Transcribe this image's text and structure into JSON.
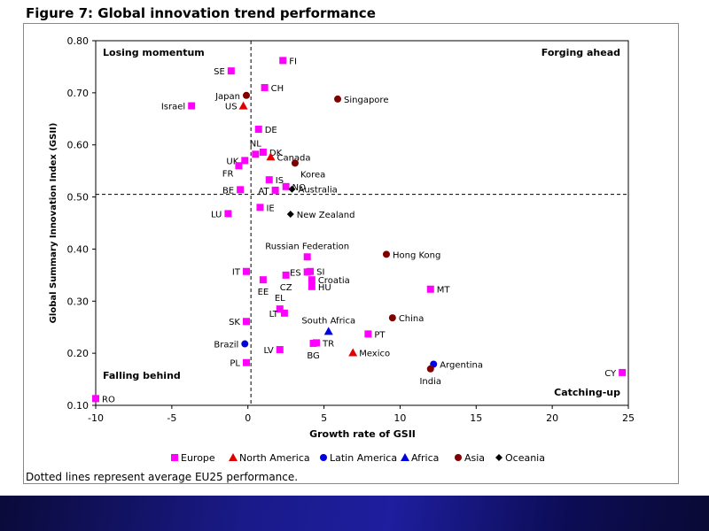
{
  "figure_title": "Figure 7: Global innovation trend performance",
  "footnote": "Dotted lines represent average EU25 performance.",
  "colors": {
    "Europe": "#ff00ff",
    "North America": "#e00000",
    "Latin America": "#0000e0",
    "Africa": "#0000e0",
    "Asia": "#800000",
    "Oceania": "#000000",
    "band": "#1a1a8a"
  },
  "chart_data": {
    "type": "scatter",
    "title": "Figure 7: Global innovation trend performance",
    "xlabel": "Growth rate of GSII",
    "ylabel": "Global Summary Innovation Index (GSII)",
    "xlim": [
      -10,
      25
    ],
    "ylim": [
      0.1,
      0.8
    ],
    "xticks": [
      -10,
      -5,
      0,
      5,
      10,
      15,
      20,
      25
    ],
    "yticks": [
      0.1,
      0.2,
      0.3,
      0.4,
      0.5,
      0.6,
      0.7,
      0.8
    ],
    "reference_lines": {
      "x": 0.2,
      "y": 0.505
    },
    "quadrant_labels": {
      "top_left": "Losing momentum",
      "top_right": "Forging ahead",
      "bottom_left": "Falling behind",
      "bottom_right": "Catching-up"
    },
    "legend": [
      {
        "name": "Europe",
        "marker": "square"
      },
      {
        "name": "North America",
        "marker": "triangle"
      },
      {
        "name": "Latin America",
        "marker": "circle"
      },
      {
        "name": "Africa",
        "marker": "triangle"
      },
      {
        "name": "Asia",
        "marker": "circle"
      },
      {
        "name": "Oceania",
        "marker": "diamond"
      }
    ],
    "points": [
      {
        "label": "FI",
        "x": 2.3,
        "y": 0.762,
        "group": "Europe",
        "lpos": "r"
      },
      {
        "label": "SE",
        "x": -1.1,
        "y": 0.742,
        "group": "Europe",
        "lpos": "l"
      },
      {
        "label": "CH",
        "x": 1.1,
        "y": 0.71,
        "group": "Europe",
        "lpos": "r"
      },
      {
        "label": "Japan",
        "x": -0.1,
        "y": 0.695,
        "group": "Asia",
        "lpos": "l"
      },
      {
        "label": "Singapore",
        "x": 5.9,
        "y": 0.688,
        "group": "Asia",
        "lpos": "r"
      },
      {
        "label": "Israel",
        "x": -3.7,
        "y": 0.675,
        "group": "Europe",
        "lpos": "l"
      },
      {
        "label": "US",
        "x": -0.3,
        "y": 0.675,
        "group": "North America",
        "lpos": "l"
      },
      {
        "label": "DE",
        "x": 0.7,
        "y": 0.63,
        "group": "Europe",
        "lpos": "r"
      },
      {
        "label": "NL",
        "x": 0.5,
        "y": 0.582,
        "group": "Europe",
        "lpos": "t"
      },
      {
        "label": "DK",
        "x": 1.0,
        "y": 0.586,
        "group": "Europe",
        "lpos": "r"
      },
      {
        "label": "Canada",
        "x": 1.5,
        "y": 0.577,
        "group": "North America",
        "lpos": "r"
      },
      {
        "label": "UK",
        "x": -0.2,
        "y": 0.57,
        "group": "Europe",
        "lpos": "l"
      },
      {
        "label": "Korea",
        "x": 3.1,
        "y": 0.565,
        "group": "Asia",
        "lpos": "br"
      },
      {
        "label": "FR",
        "x": -0.6,
        "y": 0.56,
        "group": "Europe",
        "lpos": "bl"
      },
      {
        "label": "IS",
        "x": 1.4,
        "y": 0.533,
        "group": "Europe",
        "lpos": "r"
      },
      {
        "label": "NO",
        "x": 2.5,
        "y": 0.52,
        "group": "Europe",
        "lpos": "r"
      },
      {
        "label": "Australia",
        "x": 2.9,
        "y": 0.515,
        "group": "Oceania",
        "lpos": "r"
      },
      {
        "label": "BE",
        "x": -0.5,
        "y": 0.514,
        "group": "Europe",
        "lpos": "l"
      },
      {
        "label": "AT",
        "x": 1.8,
        "y": 0.513,
        "group": "Europe",
        "lpos": "l"
      },
      {
        "label": "IE",
        "x": 0.8,
        "y": 0.48,
        "group": "Europe",
        "lpos": "r"
      },
      {
        "label": "LU",
        "x": -1.3,
        "y": 0.468,
        "group": "Europe",
        "lpos": "l"
      },
      {
        "label": "New Zealand",
        "x": 2.8,
        "y": 0.467,
        "group": "Oceania",
        "lpos": "r"
      },
      {
        "label": "Russian Federation",
        "x": 3.9,
        "y": 0.385,
        "group": "Europe",
        "lpos": "t"
      },
      {
        "label": "Hong Kong",
        "x": 9.1,
        "y": 0.39,
        "group": "Asia",
        "lpos": "r"
      },
      {
        "label": "IT",
        "x": -0.1,
        "y": 0.357,
        "group": "Europe",
        "lpos": "l"
      },
      {
        "label": "ES",
        "x": 3.9,
        "y": 0.356,
        "group": "Europe",
        "lpos": "l"
      },
      {
        "label": "SI",
        "x": 4.1,
        "y": 0.357,
        "group": "Europe",
        "lpos": "r"
      },
      {
        "label": "Croatia",
        "x": 4.2,
        "y": 0.341,
        "group": "Europe",
        "lpos": "r"
      },
      {
        "label": "CZ",
        "x": 2.5,
        "y": 0.35,
        "group": "Europe",
        "lpos": "b"
      },
      {
        "label": "EE",
        "x": 1.0,
        "y": 0.341,
        "group": "Europe",
        "lpos": "b"
      },
      {
        "label": "HU",
        "x": 4.2,
        "y": 0.328,
        "group": "Europe",
        "lpos": "r"
      },
      {
        "label": "MT",
        "x": 12.0,
        "y": 0.323,
        "group": "Europe",
        "lpos": "r"
      },
      {
        "label": "EL",
        "x": 2.1,
        "y": 0.285,
        "group": "Europe",
        "lpos": "t"
      },
      {
        "label": "LT",
        "x": 2.4,
        "y": 0.277,
        "group": "Europe",
        "lpos": "l"
      },
      {
        "label": "South Africa",
        "x": 5.3,
        "y": 0.242,
        "group": "Africa",
        "lpos": "t"
      },
      {
        "label": "China",
        "x": 9.5,
        "y": 0.268,
        "group": "Asia",
        "lpos": "r"
      },
      {
        "label": "SK",
        "x": -0.1,
        "y": 0.261,
        "group": "Europe",
        "lpos": "l"
      },
      {
        "label": "PT",
        "x": 7.9,
        "y": 0.237,
        "group": "Europe",
        "lpos": "r"
      },
      {
        "label": "Brazil",
        "x": -0.2,
        "y": 0.218,
        "group": "Latin America",
        "lpos": "l"
      },
      {
        "label": "TR",
        "x": 4.5,
        "y": 0.22,
        "group": "Europe",
        "lpos": "r"
      },
      {
        "label": "BG",
        "x": 4.3,
        "y": 0.219,
        "group": "Europe",
        "lpos": "b"
      },
      {
        "label": "LV",
        "x": 2.1,
        "y": 0.207,
        "group": "Europe",
        "lpos": "l"
      },
      {
        "label": "Mexico",
        "x": 6.9,
        "y": 0.201,
        "group": "North America",
        "lpos": "r"
      },
      {
        "label": "PL",
        "x": -0.1,
        "y": 0.182,
        "group": "Europe",
        "lpos": "l"
      },
      {
        "label": "Argentina",
        "x": 12.2,
        "y": 0.179,
        "group": "Latin America",
        "lpos": "r"
      },
      {
        "label": "India",
        "x": 12.0,
        "y": 0.17,
        "group": "Asia",
        "lpos": "b"
      },
      {
        "label": "CY",
        "x": 24.6,
        "y": 0.163,
        "group": "Europe",
        "lpos": "l"
      },
      {
        "label": "RO",
        "x": -10.0,
        "y": 0.113,
        "group": "Europe",
        "lpos": "r"
      }
    ]
  }
}
